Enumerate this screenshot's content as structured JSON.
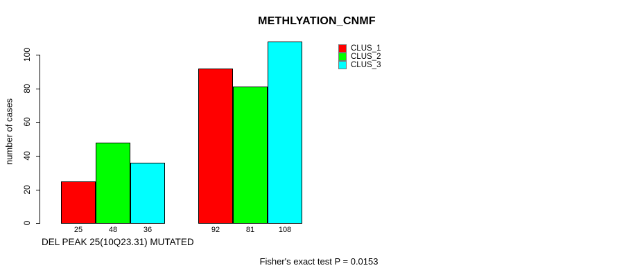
{
  "title": "METHLYATION_CNMF",
  "footnote": "Fisher's exact test P = 0.0153",
  "legend": {
    "items": [
      {
        "label": "CLUS_1",
        "color": "#ff0000"
      },
      {
        "label": "CLUS_2",
        "color": "#00ff00"
      },
      {
        "label": "CLUS_3",
        "color": "#00ffff"
      }
    ]
  },
  "chart_data": {
    "type": "bar",
    "title": "METHLYATION_CNMF",
    "xlabel": "DEL PEAK 25(10Q23.31) MUTATED",
    "ylabel": "number of cases",
    "yticks": [
      0,
      20,
      40,
      60,
      80,
      100
    ],
    "ylim": [
      0,
      108
    ],
    "grid": false,
    "legend_position": "top-right",
    "groups": [
      "group-1",
      "group-2"
    ],
    "series": [
      {
        "name": "CLUS_1",
        "color": "#ff0000",
        "values": [
          25,
          92
        ]
      },
      {
        "name": "CLUS_2",
        "color": "#00ff00",
        "values": [
          48,
          81
        ]
      },
      {
        "name": "CLUS_3",
        "color": "#00ffff",
        "values": [
          36,
          108
        ]
      }
    ],
    "bar_value_labels": [
      [
        25,
        48,
        36
      ],
      [
        92,
        81,
        108
      ]
    ]
  }
}
